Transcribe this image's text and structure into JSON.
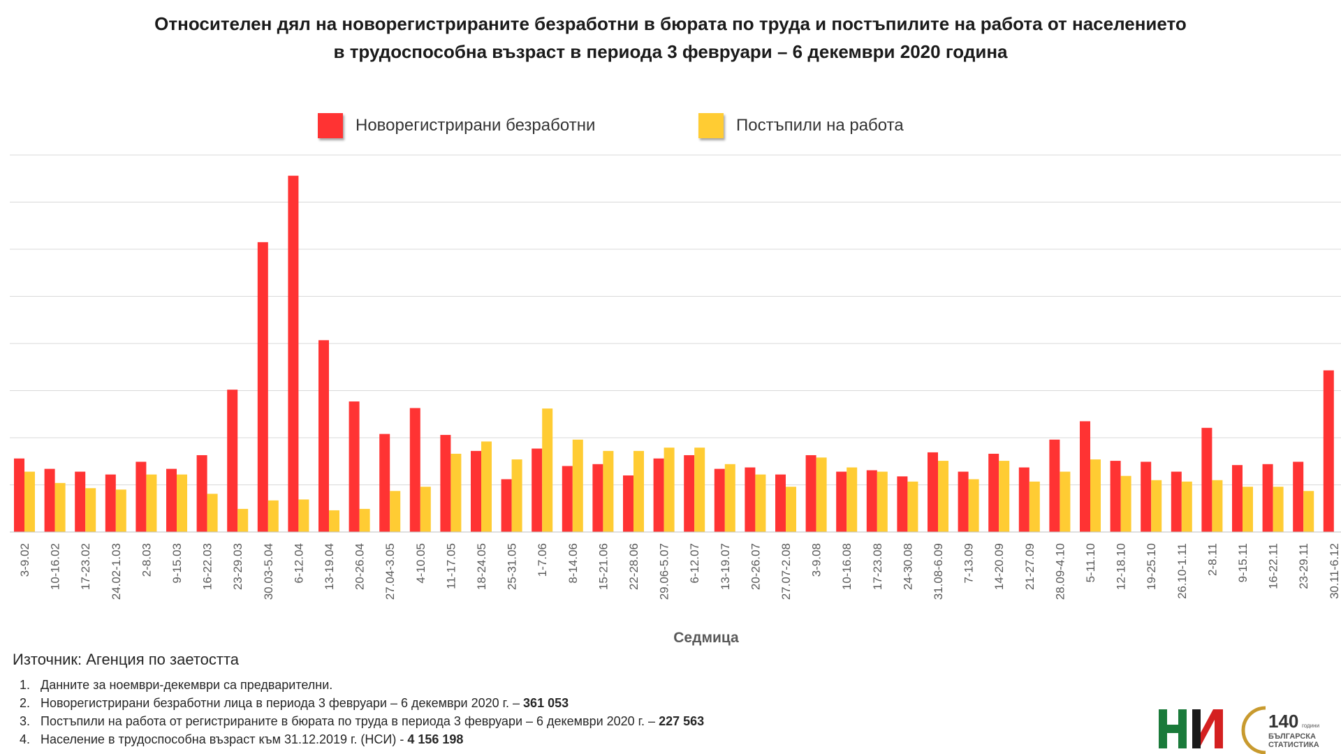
{
  "title": {
    "line1": "Относителен дял на новорегистрираните безработни в бюрата по труда и постъпилите на работа от населението",
    "line2": "в трудоспособна възраст в периода 3 февруари – 6 декември 2020 година"
  },
  "legend": [
    {
      "label": "Новорегистрирани безработни",
      "color": "#ff3333"
    },
    {
      "label": "Постъпили на работа",
      "color": "#ffcc33"
    }
  ],
  "chart_data": {
    "type": "bar",
    "xlabel": "Седмица",
    "ylabel": "",
    "ylim": [
      0,
      0.8
    ],
    "grid": true,
    "legend_position": "top",
    "categories": [
      "3-9.02",
      "10-16.02",
      "17-23.02",
      "24.02-1.03",
      "2-8.03",
      "9-15.03",
      "16-22.03",
      "23-29.03",
      "30.03-5.04",
      "6-12.04",
      "13-19.04",
      "20-26.04",
      "27.04-3.05",
      "4-10.05",
      "11-17.05",
      "18-24.05",
      "25-31.05",
      "1-7.06",
      "8-14.06",
      "15-21.06",
      "22-28.06",
      "29.06-5.07",
      "6-12.07",
      "13-19.07",
      "20-26.07",
      "27.07-2.08",
      "3-9.08",
      "10-16.08",
      "17-23.08",
      "24-30.08",
      "31.08-6.09",
      "7-13.09",
      "14-20.09",
      "21-27.09",
      "28.09-4.10",
      "5-11.10",
      "12-18.10",
      "19-25.10",
      "26.10-1.11",
      "2-8.11",
      "9-15.11",
      "16-22.11",
      "23-29.11",
      "30.11-6.12"
    ],
    "series": [
      {
        "name": "Новорегистрирани безработни",
        "color": "#ff3333",
        "values": [
          0.156,
          0.134,
          0.128,
          0.122,
          0.149,
          0.134,
          0.163,
          0.302,
          0.615,
          0.756,
          0.407,
          0.277,
          0.208,
          0.263,
          0.206,
          0.172,
          0.112,
          0.177,
          0.14,
          0.144,
          0.12,
          0.156,
          0.163,
          0.134,
          0.137,
          0.122,
          0.163,
          0.128,
          0.131,
          0.118,
          0.169,
          0.128,
          0.166,
          0.137,
          0.196,
          0.235,
          0.151,
          0.149,
          0.128,
          0.221,
          0.142,
          0.144,
          0.149,
          0.343
        ]
      },
      {
        "name": "Постъпили на работа",
        "color": "#ffcc33",
        "values": [
          0.128,
          0.104,
          0.093,
          0.09,
          0.122,
          0.122,
          0.081,
          0.049,
          0.067,
          0.069,
          0.046,
          0.049,
          0.087,
          0.096,
          0.166,
          0.192,
          0.154,
          0.262,
          0.196,
          0.172,
          0.172,
          0.179,
          0.179,
          0.144,
          0.122,
          0.096,
          0.158,
          0.137,
          0.128,
          0.107,
          0.151,
          0.112,
          0.151,
          0.107,
          0.128,
          0.154,
          0.119,
          0.11,
          0.107,
          0.11,
          0.096,
          0.096,
          0.087,
          0.0
        ]
      }
    ]
  },
  "source": "Източник: Агенция по заетостта",
  "notes": [
    {
      "num": "1.",
      "text": "Данните за ноември-декември  са предварителни.",
      "bold": ""
    },
    {
      "num": "2.",
      "text": "Новорегистрирани безработни лица в периода 3 февруари – 6 декември  2020 г. – ",
      "bold": "361 053"
    },
    {
      "num": "3.",
      "text": "Постъпили на работа от регистрираните в бюрата по труда в периода 3 февруари – 6 декември  2020 г. – ",
      "bold": "227 563"
    },
    {
      "num": "4.",
      "text": "Население в трудоспособна възраст към 31.12.2019 г. (НСИ)   - ",
      "bold": "4 156 198"
    }
  ],
  "logos": {
    "nsi": {
      "text": "НИ"
    },
    "anniversary": {
      "number": "140",
      "suffix": "години",
      "line1": "БЪЛГАРСКА",
      "line2": "СТАТИСТИКА",
      "color": "#c89a2e"
    }
  }
}
